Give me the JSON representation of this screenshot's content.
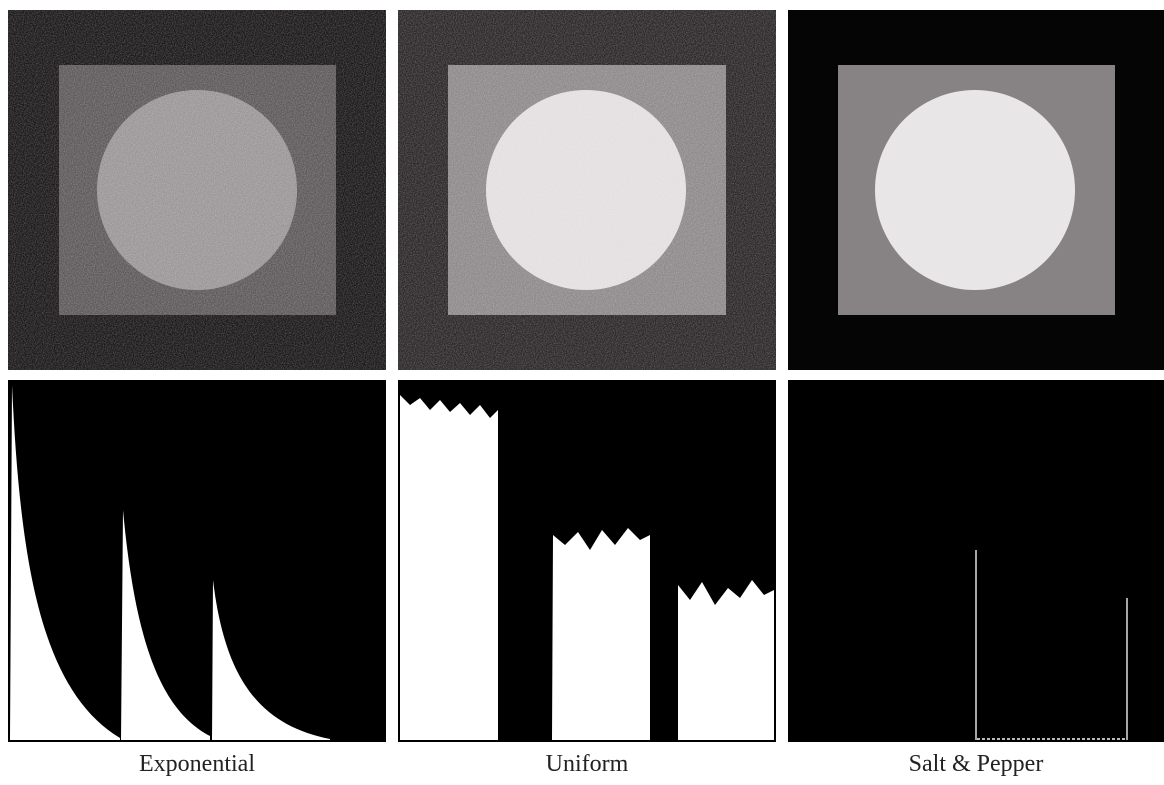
{
  "panels": [
    {
      "label": "Exponential"
    },
    {
      "label": "Uniform"
    },
    {
      "label": "Salt & Pepper"
    }
  ]
}
